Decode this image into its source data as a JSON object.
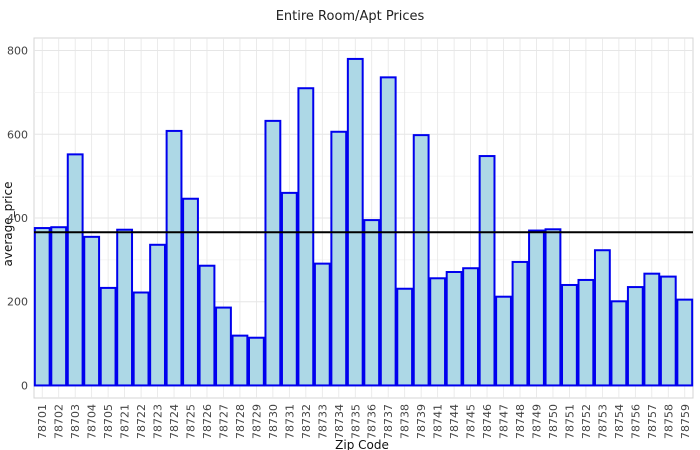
{
  "chart_data": {
    "type": "bar",
    "title": "Entire Room/Apt Prices",
    "xlabel": "Zip Code",
    "ylabel": "average_price",
    "categories": [
      "78701",
      "78702",
      "78703",
      "78704",
      "78705",
      "78721",
      "78722",
      "78723",
      "78724",
      "78725",
      "78726",
      "78727",
      "78728",
      "78729",
      "78730",
      "78731",
      "78732",
      "78733",
      "78734",
      "78735",
      "78736",
      "78737",
      "78738",
      "78739",
      "78741",
      "78744",
      "78745",
      "78746",
      "78747",
      "78748",
      "78749",
      "78750",
      "78751",
      "78752",
      "78753",
      "78754",
      "78756",
      "78757",
      "78758",
      "78759"
    ],
    "values": [
      376,
      378,
      552,
      355,
      233,
      372,
      222,
      336,
      608,
      446,
      286,
      186,
      119,
      114,
      632,
      460,
      710,
      291,
      606,
      780,
      395,
      736,
      231,
      598,
      256,
      271,
      280,
      548,
      212,
      295,
      370,
      373,
      240,
      252,
      323,
      201,
      235,
      267,
      260,
      205
    ],
    "ylim": [
      -30,
      830
    ],
    "yticks": [
      0,
      200,
      400,
      600,
      800
    ],
    "reference_line": 366,
    "grid": true,
    "colors": {
      "bar_fill": "#add8e6",
      "bar_stroke": "#0000ee",
      "reference_line": "#000000",
      "grid": "#e6e6e6",
      "panel_border": "#d4d4d4"
    }
  }
}
